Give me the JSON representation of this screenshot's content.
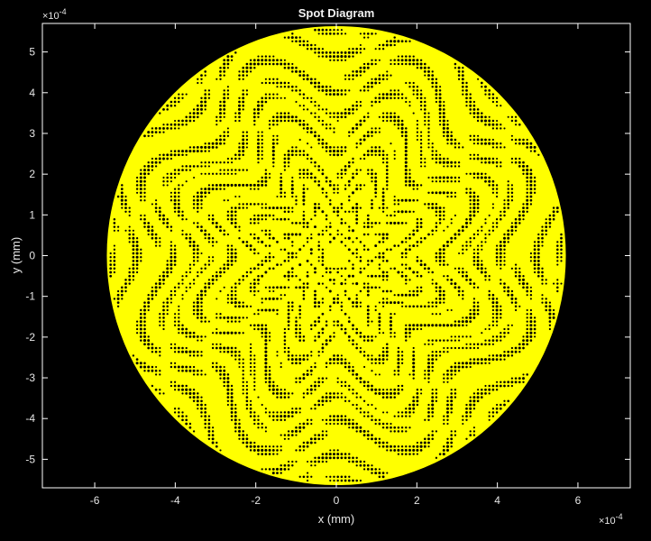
{
  "chart_data": {
    "type": "scatter",
    "title": "Spot Diagram",
    "xlabel": "x (mm)",
    "ylabel": "y (mm)",
    "x_exponent_label": "×10",
    "y_exponent_label": "×10",
    "exponent": "-4",
    "scale": 0.0001,
    "xlim": [
      -0.00073,
      0.00073
    ],
    "ylim": [
      -0.00057,
      0.00057
    ],
    "xticks": [
      -6,
      -4,
      -2,
      0,
      2,
      4,
      6
    ],
    "yticks": [
      -5,
      -4,
      -3,
      -2,
      -1,
      0,
      1,
      2,
      3,
      4,
      5
    ],
    "xtick_labels": [
      "-6",
      "-4",
      "-2",
      "0",
      "2",
      "4",
      "6"
    ],
    "ytick_labels": [
      "-5",
      "-4",
      "-3",
      "-2",
      "-1",
      "0",
      "1",
      "2",
      "3",
      "4",
      "5"
    ],
    "grid": false,
    "marker_color": "#ffff00",
    "background_color": "#000000",
    "axes_color": "#ffffff",
    "spot": {
      "shape": "circular dense ray intercept pattern",
      "center": [
        0,
        0
      ],
      "radius": 0.00057
    }
  }
}
